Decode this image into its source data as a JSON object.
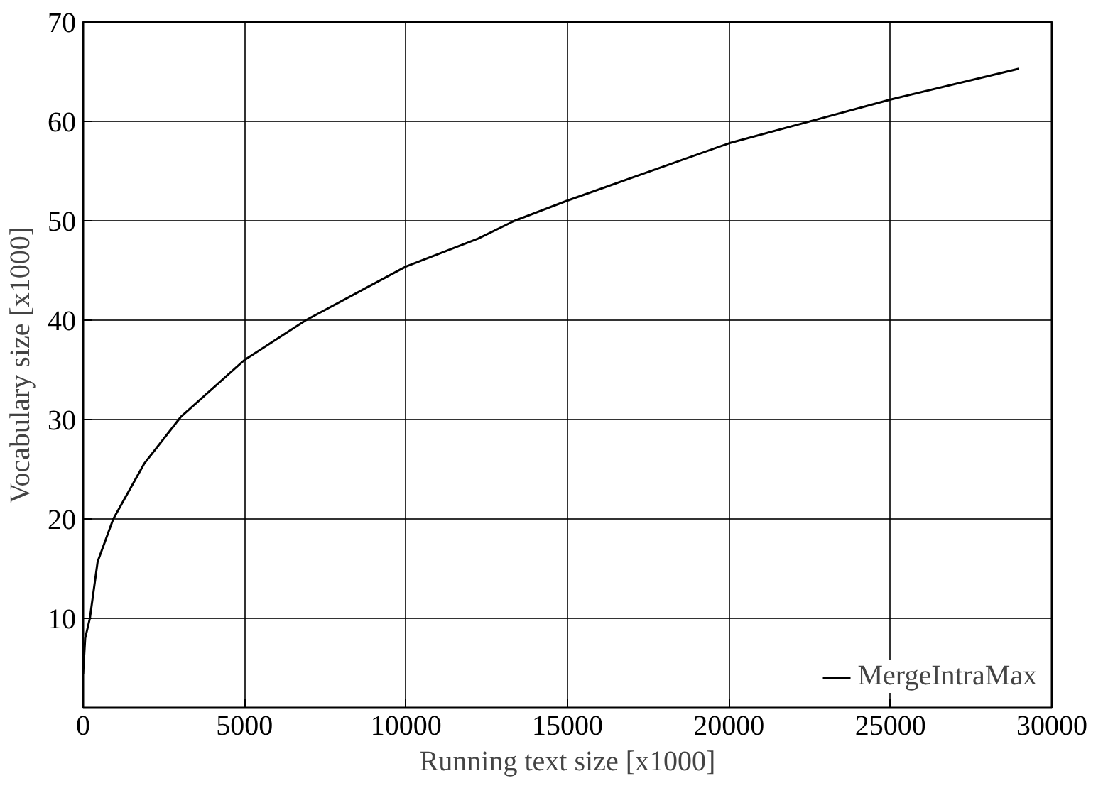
{
  "chart_data": {
    "type": "line",
    "xlabel": "Running text size [x1000]",
    "ylabel": "Vocabulary size [x1000]",
    "xlim": [
      0,
      30000
    ],
    "ylim": [
      1,
      70
    ],
    "xticks": [
      0,
      5000,
      10000,
      15000,
      20000,
      25000,
      30000
    ],
    "yticks": [
      10,
      20,
      30,
      40,
      50,
      60,
      70
    ],
    "grid": true,
    "legend": "bottom right",
    "line_style": "solid",
    "series": [
      {
        "name": "MergeIntraMax",
        "color": "#000000",
        "x": [
          0,
          65,
          210,
          450,
          935,
          1900,
          3035,
          5000,
          6900,
          10000,
          12230,
          13360,
          14970,
          20000,
          22390,
          25000,
          28980
        ],
        "values": [
          4.4,
          8,
          10,
          15.7,
          20,
          25.6,
          30.3,
          36,
          40,
          45.4,
          48.2,
          50,
          52,
          57.8,
          59.9,
          62.2,
          65.3
        ]
      }
    ]
  }
}
